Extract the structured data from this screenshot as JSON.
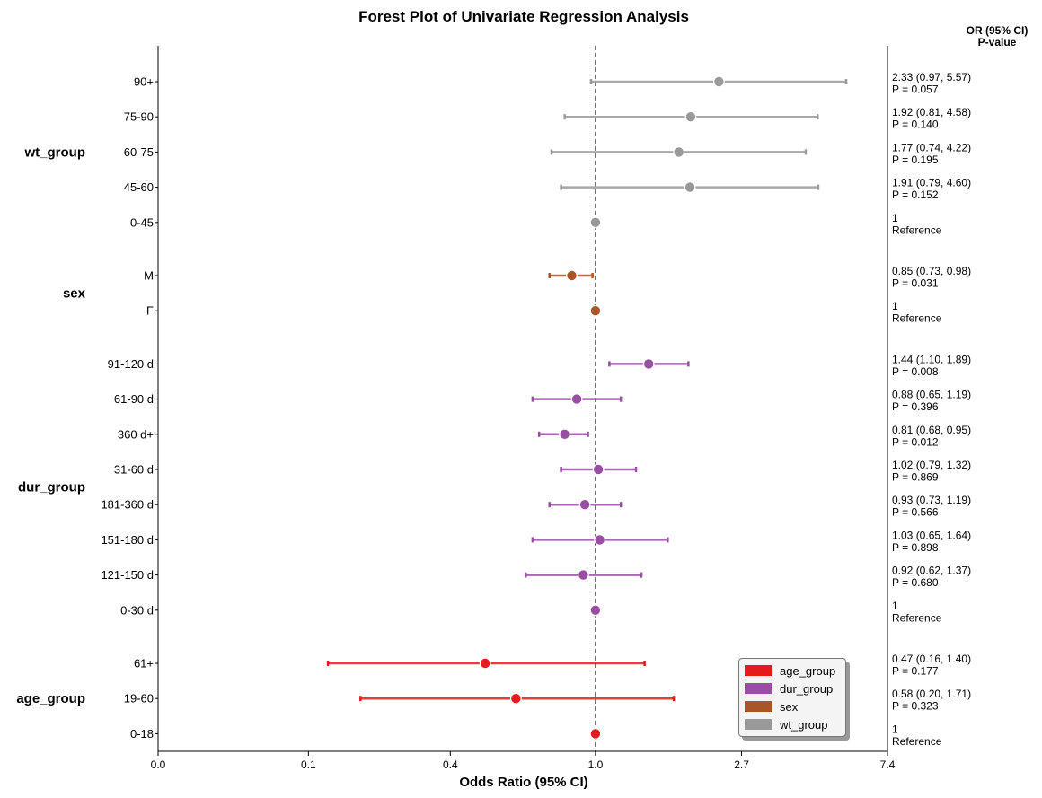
{
  "chart_data": {
    "type": "forest",
    "title": "Forest Plot of Univariate Regression Analysis",
    "xlabel": "Odds Ratio (95% CI)",
    "right_header": [
      "OR (95% CI)",
      "P-value"
    ],
    "reference_line": 1.0,
    "xscale": "log",
    "xticks": [
      {
        "value": 0.05,
        "label": "0.0"
      },
      {
        "value": 0.14,
        "label": "0.1"
      },
      {
        "value": 0.37,
        "label": "0.4"
      },
      {
        "value": 1.0,
        "label": "1.0"
      },
      {
        "value": 2.72,
        "label": "2.7"
      },
      {
        "value": 7.39,
        "label": "7.4"
      }
    ],
    "xlim": [
      0.05,
      7.39
    ],
    "legend_position": "lower-right",
    "groups": [
      {
        "name": "age_group",
        "color": "#e41a1c"
      },
      {
        "name": "dur_group",
        "color": "#984ea3"
      },
      {
        "name": "sex",
        "color": "#a65628"
      },
      {
        "name": "wt_group",
        "color": "#999999"
      }
    ],
    "rows": [
      {
        "group": "wt_group",
        "label": "90+",
        "or": 2.33,
        "lo": 0.97,
        "hi": 5.57,
        "ci_text": "2.33 (0.97, 5.57)",
        "p_text": "P = 0.057"
      },
      {
        "group": "wt_group",
        "label": "75-90",
        "or": 1.92,
        "lo": 0.81,
        "hi": 4.58,
        "ci_text": "1.92 (0.81, 4.58)",
        "p_text": "P = 0.140"
      },
      {
        "group": "wt_group",
        "label": "60-75",
        "or": 1.77,
        "lo": 0.74,
        "hi": 4.22,
        "ci_text": "1.77 (0.74, 4.22)",
        "p_text": "P = 0.195"
      },
      {
        "group": "wt_group",
        "label": "45-60",
        "or": 1.91,
        "lo": 0.79,
        "hi": 4.6,
        "ci_text": "1.91 (0.79, 4.60)",
        "p_text": "P = 0.152"
      },
      {
        "group": "wt_group",
        "label": "0-45",
        "or": 1.0,
        "lo": null,
        "hi": null,
        "ci_text": "1",
        "p_text": "Reference"
      },
      {
        "group": "sex",
        "label": "M",
        "or": 0.85,
        "lo": 0.73,
        "hi": 0.98,
        "ci_text": "0.85 (0.73, 0.98)",
        "p_text": "P = 0.031"
      },
      {
        "group": "sex",
        "label": "F",
        "or": 1.0,
        "lo": null,
        "hi": null,
        "ci_text": "1",
        "p_text": "Reference"
      },
      {
        "group": "dur_group",
        "label": "91-120 d",
        "or": 1.44,
        "lo": 1.1,
        "hi": 1.89,
        "ci_text": "1.44 (1.10, 1.89)",
        "p_text": "P = 0.008"
      },
      {
        "group": "dur_group",
        "label": "61-90 d",
        "or": 0.88,
        "lo": 0.65,
        "hi": 1.19,
        "ci_text": "0.88 (0.65, 1.19)",
        "p_text": "P = 0.396"
      },
      {
        "group": "dur_group",
        "label": "360 d+",
        "or": 0.81,
        "lo": 0.68,
        "hi": 0.95,
        "ci_text": "0.81 (0.68, 0.95)",
        "p_text": "P = 0.012"
      },
      {
        "group": "dur_group",
        "label": "31-60 d",
        "or": 1.02,
        "lo": 0.79,
        "hi": 1.32,
        "ci_text": "1.02 (0.79, 1.32)",
        "p_text": "P = 0.869"
      },
      {
        "group": "dur_group",
        "label": "181-360 d",
        "or": 0.93,
        "lo": 0.73,
        "hi": 1.19,
        "ci_text": "0.93 (0.73, 1.19)",
        "p_text": "P = 0.566"
      },
      {
        "group": "dur_group",
        "label": "151-180 d",
        "or": 1.03,
        "lo": 0.65,
        "hi": 1.64,
        "ci_text": "1.03 (0.65, 1.64)",
        "p_text": "P = 0.898"
      },
      {
        "group": "dur_group",
        "label": "121-150 d",
        "or": 0.92,
        "lo": 0.62,
        "hi": 1.37,
        "ci_text": "0.92 (0.62, 1.37)",
        "p_text": "P = 0.680"
      },
      {
        "group": "dur_group",
        "label": "0-30 d",
        "or": 1.0,
        "lo": null,
        "hi": null,
        "ci_text": "1",
        "p_text": "Reference"
      },
      {
        "group": "age_group",
        "label": "61+",
        "or": 0.47,
        "lo": 0.16,
        "hi": 1.4,
        "ci_text": "0.47 (0.16, 1.40)",
        "p_text": "P = 0.177"
      },
      {
        "group": "age_group",
        "label": "19-60",
        "or": 0.58,
        "lo": 0.2,
        "hi": 1.71,
        "ci_text": "0.58 (0.20, 1.71)",
        "p_text": "P = 0.323"
      },
      {
        "group": "age_group",
        "label": "0-18",
        "or": 1.0,
        "lo": null,
        "hi": null,
        "ci_text": "1",
        "p_text": "Reference"
      }
    ]
  }
}
